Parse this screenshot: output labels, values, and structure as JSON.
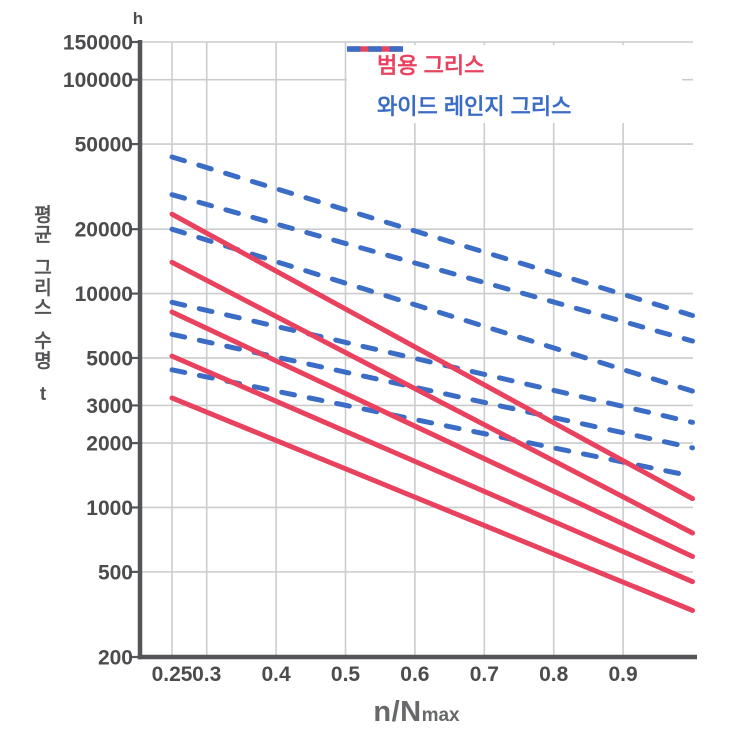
{
  "chart_data": {
    "type": "line",
    "title": "",
    "x_axis": {
      "label": "n/Nmax",
      "label_main": "n/N",
      "label_sub": "max",
      "scale": "linear",
      "min": 0.25,
      "max": 1.0,
      "ticks": [
        "0.25",
        "0.3",
        "0.4",
        "0.5",
        "0.6",
        "0.7",
        "0.8",
        "0.9"
      ],
      "tick_values": [
        0.25,
        0.3,
        0.4,
        0.5,
        0.6,
        0.7,
        0.8,
        0.9
      ]
    },
    "y_axis": {
      "label": "평균 그리스 수명 t",
      "unit": "h",
      "scale": "log",
      "min": 200,
      "max": 150000,
      "ticks": [
        "150000",
        "100000",
        "50000",
        "20000",
        "10000",
        "5000",
        "3000",
        "2000",
        "1000",
        "500",
        "200"
      ],
      "tick_values": [
        150000,
        100000,
        50000,
        20000,
        10000,
        5000,
        3000,
        2000,
        1000,
        500,
        200
      ]
    },
    "grid": true,
    "legend": {
      "position": "top-right",
      "items": [
        {
          "label": "범용 그리스",
          "line_style": "solid",
          "color": "#e8425f"
        },
        {
          "label": "와이드 레인지 그리스",
          "line_style": "dashed",
          "color": "#3b6dc6"
        }
      ]
    },
    "series": [
      {
        "name": "범용 그리스 1",
        "group": "범용 그리스",
        "style": "solid",
        "color": "#e8425f",
        "x": [
          0.25,
          1.0
        ],
        "y": [
          23500,
          1100
        ]
      },
      {
        "name": "범용 그리스 2",
        "group": "범용 그리스",
        "style": "solid",
        "color": "#e8425f",
        "x": [
          0.25,
          1.0
        ],
        "y": [
          14000,
          760
        ]
      },
      {
        "name": "범용 그리스 3",
        "group": "범용 그리스",
        "style": "solid",
        "color": "#e8425f",
        "x": [
          0.25,
          1.0
        ],
        "y": [
          8200,
          590
        ]
      },
      {
        "name": "범용 그리스 4",
        "group": "범용 그리스",
        "style": "solid",
        "color": "#e8425f",
        "x": [
          0.25,
          1.0
        ],
        "y": [
          5100,
          450
        ]
      },
      {
        "name": "범용 그리스 5",
        "group": "범용 그리스",
        "style": "solid",
        "color": "#e8425f",
        "x": [
          0.25,
          1.0
        ],
        "y": [
          3250,
          330
        ]
      },
      {
        "name": "와이드 레인지 그리스 1",
        "group": "와이드 레인지 그리스",
        "style": "dashed",
        "color": "#3b6dc6",
        "x": [
          0.25,
          1.0
        ],
        "y": [
          43500,
          7900
        ]
      },
      {
        "name": "와이드 레인지 그리스 2",
        "group": "와이드 레인지 그리스",
        "style": "dashed",
        "color": "#3b6dc6",
        "x": [
          0.25,
          1.0
        ],
        "y": [
          29000,
          6000
        ]
      },
      {
        "name": "와이드 레인지 그리스 3",
        "group": "와이드 레인지 그리스",
        "style": "dashed",
        "color": "#3b6dc6",
        "x": [
          0.25,
          1.0
        ],
        "y": [
          20000,
          3500
        ]
      },
      {
        "name": "와이드 레인지 그리스 4",
        "group": "와이드 레인지 그리스",
        "style": "dashed",
        "color": "#3b6dc6",
        "x": [
          0.25,
          1.0
        ],
        "y": [
          9100,
          2500
        ]
      },
      {
        "name": "와이드 레인지 그리스 5",
        "group": "와이드 레인지 그리스",
        "style": "dashed",
        "color": "#3b6dc6",
        "x": [
          0.25,
          1.0
        ],
        "y": [
          6450,
          1900
        ]
      },
      {
        "name": "와이드 레인지 그리스 6",
        "group": "와이드 레인지 그리스",
        "style": "dashed",
        "color": "#3b6dc6",
        "x": [
          0.25,
          1.0
        ],
        "y": [
          4400,
          1400
        ]
      }
    ],
    "style_colors": {
      "axis": "#545559",
      "grid": "#cbcccd",
      "tick_text": "#4b4c4e"
    }
  }
}
